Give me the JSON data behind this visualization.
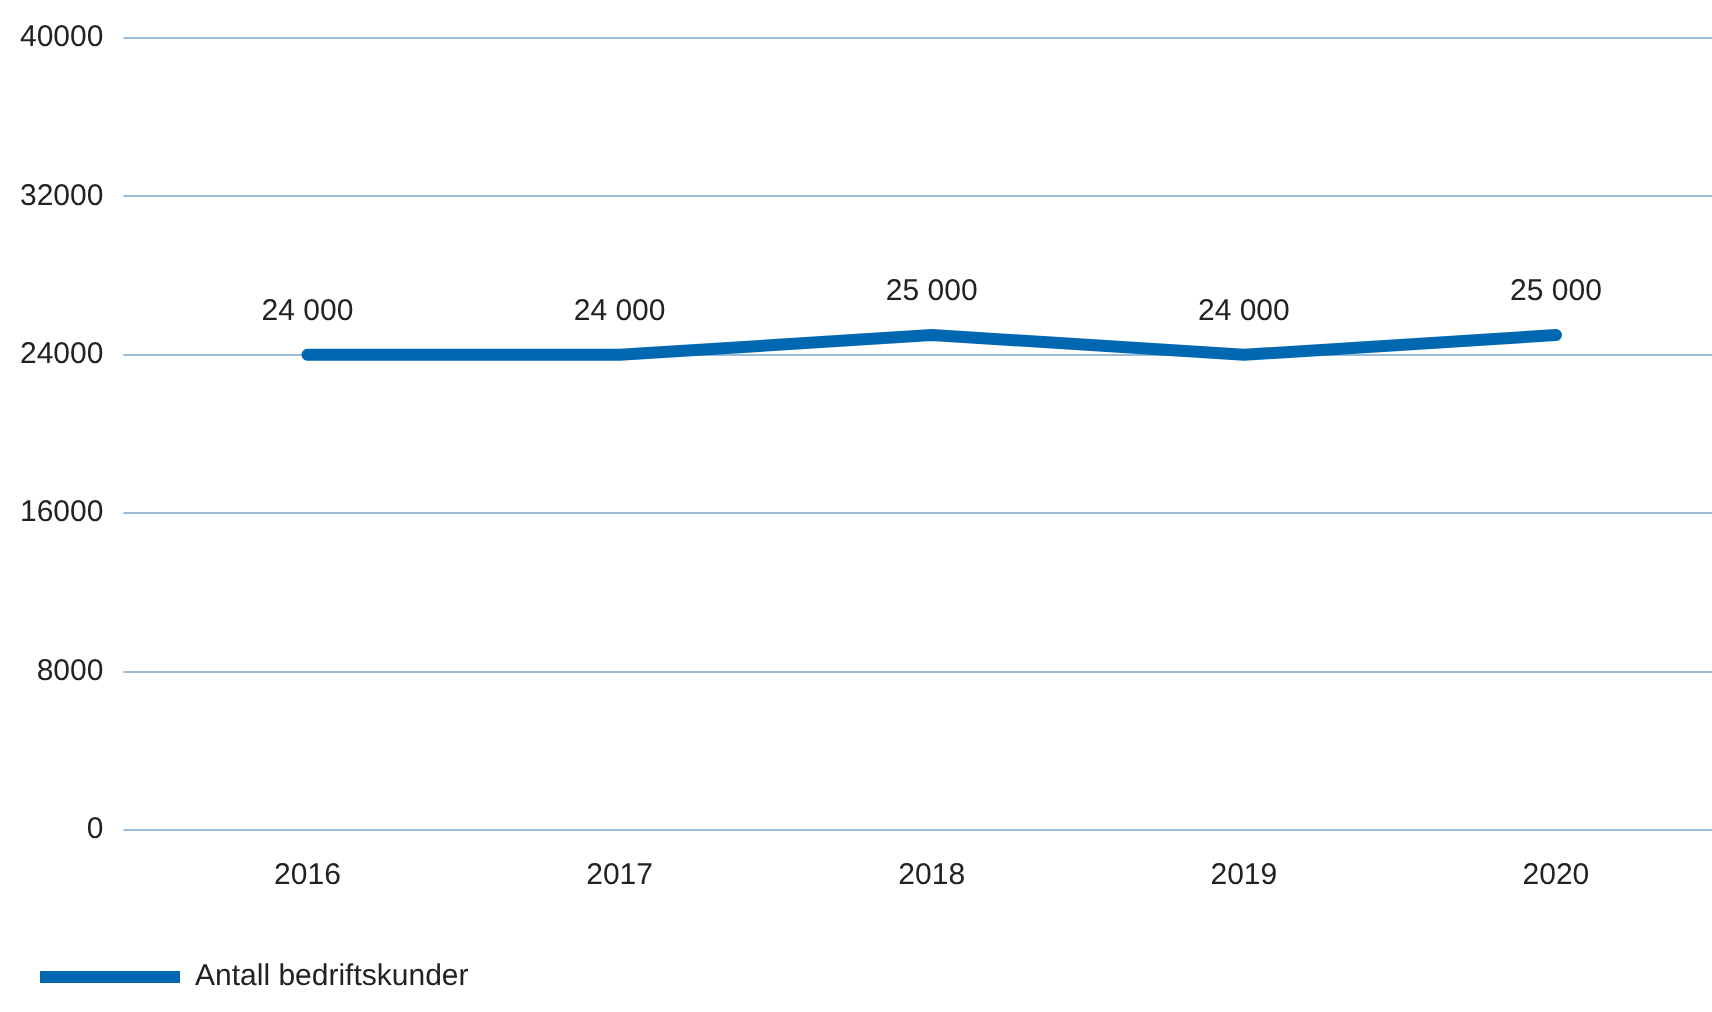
{
  "chart_data": {
    "type": "line",
    "categories": [
      "2016",
      "2017",
      "2018",
      "2019",
      "2020"
    ],
    "series": [
      {
        "name": "Antall bedriftskunder",
        "color": "#0067b1",
        "values": [
          24000,
          24000,
          25000,
          24000,
          25000
        ],
        "value_labels": [
          "24 000",
          "24 000",
          "25 000",
          "24 000",
          "25 000"
        ]
      }
    ],
    "ylim": [
      0,
      40000
    ],
    "yticks": [
      0,
      8000,
      16000,
      24000,
      32000,
      40000
    ],
    "grid": "y",
    "legend": "bottom left",
    "marker": "none",
    "line_style": "solid"
  }
}
